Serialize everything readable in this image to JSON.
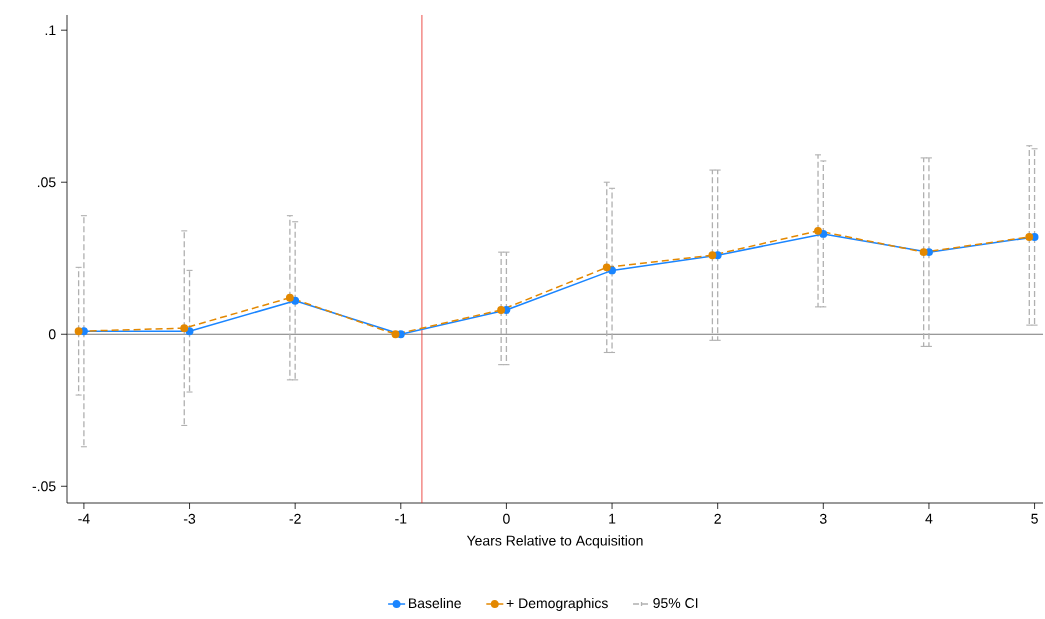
{
  "chart_data": {
    "type": "line",
    "xlabel": "Years Relative to Acquisition",
    "xlim": [
      -4.16,
      5.08
    ],
    "ylim": [
      -0.0555,
      0.105
    ],
    "xticks": [
      -4,
      -3,
      -2,
      -1,
      0,
      1,
      2,
      3,
      4,
      5
    ],
    "yticks": [
      {
        "value": -0.05,
        "label": "-.05"
      },
      0,
      {
        "value": 0.05,
        "label": ".05"
      },
      {
        "value": 0.1,
        "label": ".1"
      }
    ],
    "marker": "circle",
    "legend": "bottom",
    "ref_lines": [
      {
        "axis": "y",
        "value": 0,
        "color": "#555555"
      },
      {
        "axis": "x",
        "value": -0.8,
        "color": "#e8231c"
      }
    ],
    "annotations": [
      "95% CI"
    ],
    "series": [
      {
        "name": "Baseline",
        "color": "#1a85ff",
        "line_style": "solid",
        "x": [
          -4,
          -3,
          -2,
          -1,
          0,
          1,
          2,
          3,
          4,
          5
        ],
        "values": [
          0.001,
          0.001,
          0.011,
          0,
          0.008,
          0.021,
          0.026,
          0.033,
          0.027,
          0.032
        ],
        "errors": [
          [
            -0.037,
            0.039
          ],
          [
            -0.019,
            0.021
          ],
          [
            -0.015,
            0.037
          ],
          null,
          [
            -0.01,
            0.027
          ],
          [
            -0.006,
            0.048
          ],
          [
            -0.002,
            0.054
          ],
          [
            0.009,
            0.057
          ],
          [
            -0.004,
            0.058
          ],
          [
            0.003,
            0.061
          ]
        ]
      },
      {
        "name": "+ Demographics",
        "color": "#e38800",
        "line_style": "dashed",
        "x": [
          -4.05,
          -3.05,
          -2.05,
          -1.05,
          -0.05,
          0.95,
          1.95,
          2.95,
          3.95,
          4.95
        ],
        "values": [
          0.001,
          0.002,
          0.012,
          0,
          0.008,
          0.022,
          0.026,
          0.034,
          0.027,
          0.032
        ],
        "errors": [
          [
            -0.02,
            0.022
          ],
          [
            -0.03,
            0.034
          ],
          [
            -0.015,
            0.039
          ],
          null,
          [
            -0.01,
            0.027
          ],
          [
            -0.006,
            0.05
          ],
          [
            -0.002,
            0.054
          ],
          [
            0.009,
            0.059
          ],
          [
            -0.004,
            0.058
          ],
          [
            0.003,
            0.062
          ]
        ]
      }
    ]
  }
}
